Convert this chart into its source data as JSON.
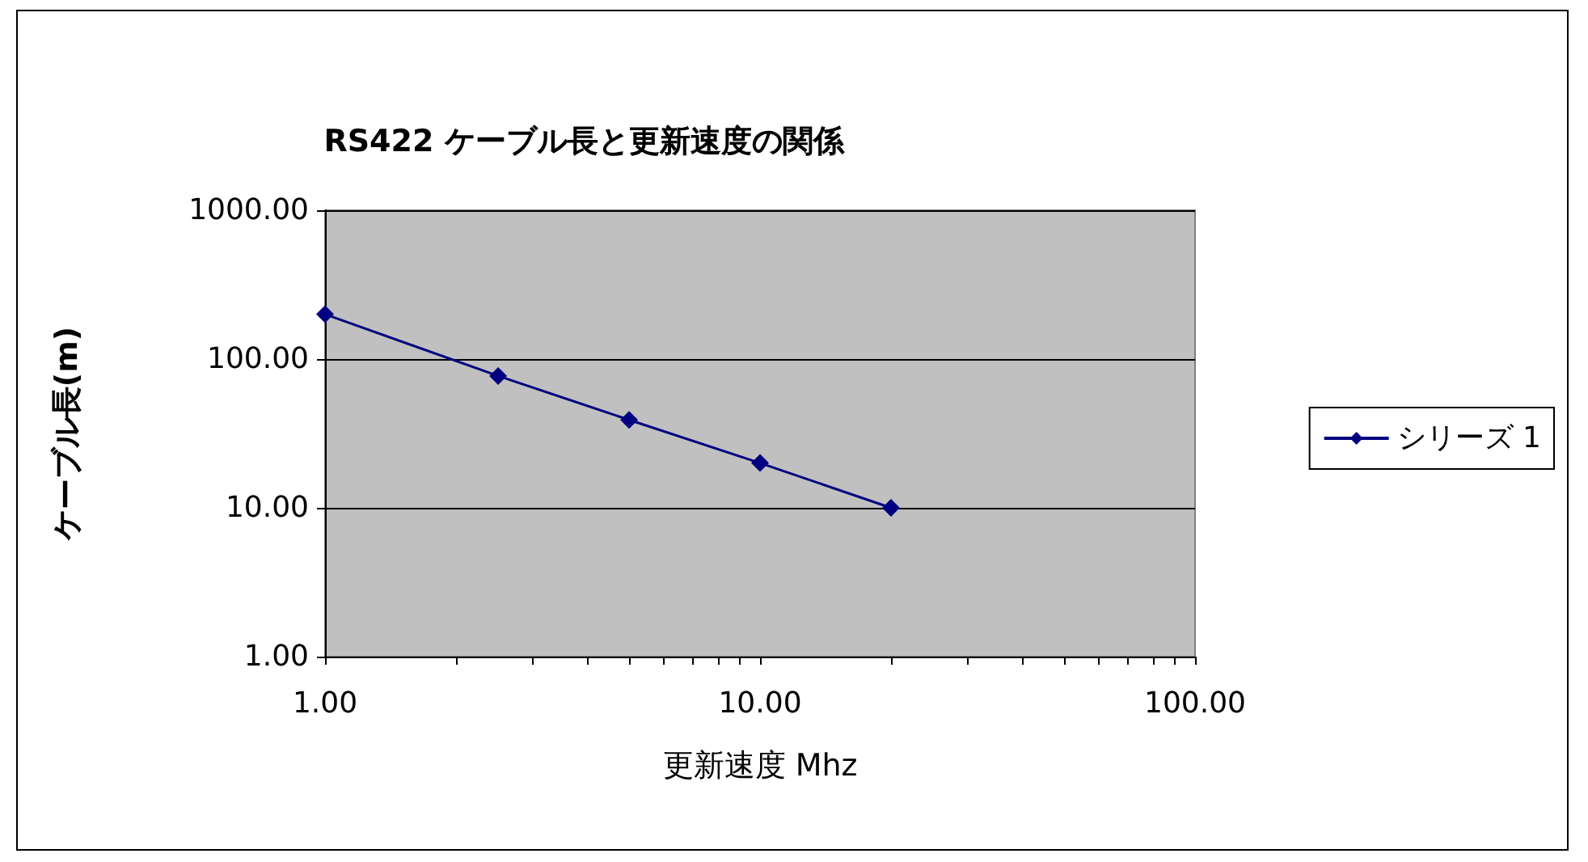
{
  "chart_data": {
    "type": "line",
    "title": "RS422 ケーブル長と更新速度の関係",
    "xlabel": "更新速度 Mhz",
    "ylabel": "ケーブル長(m)",
    "x": [
      1,
      2.5,
      5,
      10,
      20
    ],
    "series": [
      {
        "name": "シリーズ 1",
        "color": "#000080",
        "values": [
          200,
          77,
          39,
          20,
          10
        ]
      }
    ],
    "log": "xy",
    "xlim": [
      1,
      100
    ],
    "ylim": [
      1,
      1000
    ],
    "xticks": [
      {
        "value": 1,
        "label": "1.00"
      },
      {
        "value": 2,
        "label": null
      },
      {
        "value": 3,
        "label": null
      },
      {
        "value": 4,
        "label": null
      },
      {
        "value": 5,
        "label": null
      },
      {
        "value": 6,
        "label": null
      },
      {
        "value": 7,
        "label": null
      },
      {
        "value": 8,
        "label": null
      },
      {
        "value": 9,
        "label": null
      },
      {
        "value": 10,
        "label": "10.00"
      },
      {
        "value": 20,
        "label": null
      },
      {
        "value": 30,
        "label": null
      },
      {
        "value": 40,
        "label": null
      },
      {
        "value": 50,
        "label": null
      },
      {
        "value": 60,
        "label": null
      },
      {
        "value": 70,
        "label": null
      },
      {
        "value": 80,
        "label": null
      },
      {
        "value": 90,
        "label": null
      },
      {
        "value": 100,
        "label": "100.00"
      }
    ],
    "yticks": [
      {
        "value": 1,
        "label": "1.00"
      },
      {
        "value": 10,
        "label": "10.00"
      },
      {
        "value": 100,
        "label": "100.00"
      },
      {
        "value": 1000,
        "label": "1000.00"
      }
    ],
    "grid": "y",
    "legend": "right",
    "marker": "diamond",
    "line_style": "solid"
  }
}
